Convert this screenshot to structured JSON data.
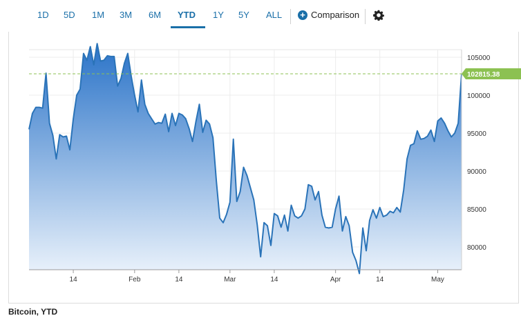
{
  "toolbar": {
    "ranges": [
      "1D",
      "5D",
      "1M",
      "3M",
      "6M",
      "YTD",
      "1Y",
      "5Y",
      "ALL"
    ],
    "active_range": "YTD",
    "comparison_label": "Comparison",
    "settings_icon": "gear-icon",
    "comparison_icon": "plus-circle-icon",
    "accent_color": "#1a6fa8"
  },
  "caption": "Bitcoin, YTD",
  "chart_data": {
    "type": "area",
    "title": "",
    "xlabel": "",
    "ylabel": "",
    "ylim": [
      77000,
      106000
    ],
    "y_ticks": [
      80000,
      85000,
      90000,
      95000,
      100000,
      105000
    ],
    "y_tick_labels": [
      "80000",
      "85000",
      "90000",
      "95000",
      "100000",
      "105000"
    ],
    "x_ticks": [
      "2025-01-14",
      "2025-02-01",
      "2025-02-14",
      "2025-03-01",
      "2025-03-14",
      "2025-04-01",
      "2025-04-14",
      "2025-05-01"
    ],
    "x_tick_labels": [
      "14",
      "Feb",
      "14",
      "Mar",
      "14",
      "Apr",
      "14",
      "May"
    ],
    "grid": true,
    "last_value": 102815.38,
    "last_value_label": "102815.38",
    "line_color": "#2a73b8",
    "fill_top_color": "#2a73c8",
    "fill_bottom_color": "#eaf2fb",
    "marker_color": "#8cc152",
    "series": [
      {
        "x": [
          "2025-01-01",
          "2025-01-02",
          "2025-01-03",
          "2025-01-04",
          "2025-01-05",
          "2025-01-06",
          "2025-01-07",
          "2025-01-08",
          "2025-01-09",
          "2025-01-10",
          "2025-01-11",
          "2025-01-12",
          "2025-01-13",
          "2025-01-14",
          "2025-01-15",
          "2025-01-16",
          "2025-01-17",
          "2025-01-18",
          "2025-01-19",
          "2025-01-20",
          "2025-01-21",
          "2025-01-22",
          "2025-01-23",
          "2025-01-24",
          "2025-01-25",
          "2025-01-26",
          "2025-01-27",
          "2025-01-28",
          "2025-01-29",
          "2025-01-30",
          "2025-01-31",
          "2025-02-01",
          "2025-02-02",
          "2025-02-03",
          "2025-02-04",
          "2025-02-05",
          "2025-02-06",
          "2025-02-07",
          "2025-02-08",
          "2025-02-09",
          "2025-02-10",
          "2025-02-11",
          "2025-02-12",
          "2025-02-13",
          "2025-02-14",
          "2025-02-15",
          "2025-02-16",
          "2025-02-17",
          "2025-02-18",
          "2025-02-19",
          "2025-02-20",
          "2025-02-21",
          "2025-02-22",
          "2025-02-23",
          "2025-02-24",
          "2025-02-25",
          "2025-02-26",
          "2025-02-27",
          "2025-02-28",
          "2025-03-01",
          "2025-03-02",
          "2025-03-03",
          "2025-03-04",
          "2025-03-05",
          "2025-03-06",
          "2025-03-07",
          "2025-03-08",
          "2025-03-09",
          "2025-03-10",
          "2025-03-11",
          "2025-03-12",
          "2025-03-13",
          "2025-03-14",
          "2025-03-15",
          "2025-03-16",
          "2025-03-17",
          "2025-03-18",
          "2025-03-19",
          "2025-03-20",
          "2025-03-21",
          "2025-03-22",
          "2025-03-23",
          "2025-03-24",
          "2025-03-25",
          "2025-03-26",
          "2025-03-27",
          "2025-03-28",
          "2025-03-29",
          "2025-03-30",
          "2025-03-31",
          "2025-04-01",
          "2025-04-02",
          "2025-04-03",
          "2025-04-04",
          "2025-04-05",
          "2025-04-06",
          "2025-04-07",
          "2025-04-08",
          "2025-04-09",
          "2025-04-10",
          "2025-04-11",
          "2025-04-12",
          "2025-04-13",
          "2025-04-14",
          "2025-04-15",
          "2025-04-16",
          "2025-04-17",
          "2025-04-18",
          "2025-04-19",
          "2025-04-20",
          "2025-04-21",
          "2025-04-22",
          "2025-04-23",
          "2025-04-24",
          "2025-04-25",
          "2025-04-26",
          "2025-04-27",
          "2025-04-28",
          "2025-04-29",
          "2025-04-30",
          "2025-05-01",
          "2025-05-02",
          "2025-05-03",
          "2025-05-04",
          "2025-05-05",
          "2025-05-06",
          "2025-05-07",
          "2025-05-08"
        ],
        "values": [
          95500,
          97600,
          98400,
          98400,
          98300,
          102900,
          96300,
          94700,
          91600,
          94800,
          94500,
          94600,
          92800,
          96900,
          100000,
          100800,
          105500,
          104600,
          106400,
          104000,
          106800,
          104500,
          104600,
          105200,
          105100,
          105100,
          101200,
          102200,
          104200,
          105500,
          102500,
          100000,
          97800,
          102000,
          98800,
          97600,
          96900,
          96200,
          96400,
          96300,
          97500,
          95200,
          97600,
          96000,
          97600,
          97400,
          96900,
          95600,
          93900,
          96500,
          98800,
          95100,
          96700,
          96200,
          94400,
          88700,
          83800,
          83200,
          84300,
          85900,
          94200,
          86000,
          87300,
          90500,
          89400,
          87800,
          86200,
          82900,
          78700,
          83200,
          82800,
          80200,
          84400,
          84100,
          82600,
          84200,
          82100,
          85500,
          84100,
          83800,
          84100,
          85000,
          88200,
          88000,
          86200,
          87300,
          84200,
          82600,
          82500,
          82600,
          85000,
          86700,
          82100,
          84000,
          82800,
          79300,
          78200,
          76500,
          82500,
          79500,
          83500,
          84900,
          83800,
          85200,
          84000,
          84200,
          84700,
          84500,
          85200,
          84600,
          87500,
          91600,
          93400,
          93600,
          95300,
          94200,
          94300,
          94600,
          95400,
          93900,
          96600,
          97000,
          96300,
          95300,
          94500,
          95000,
          96300,
          102815
        ]
      }
    ]
  }
}
